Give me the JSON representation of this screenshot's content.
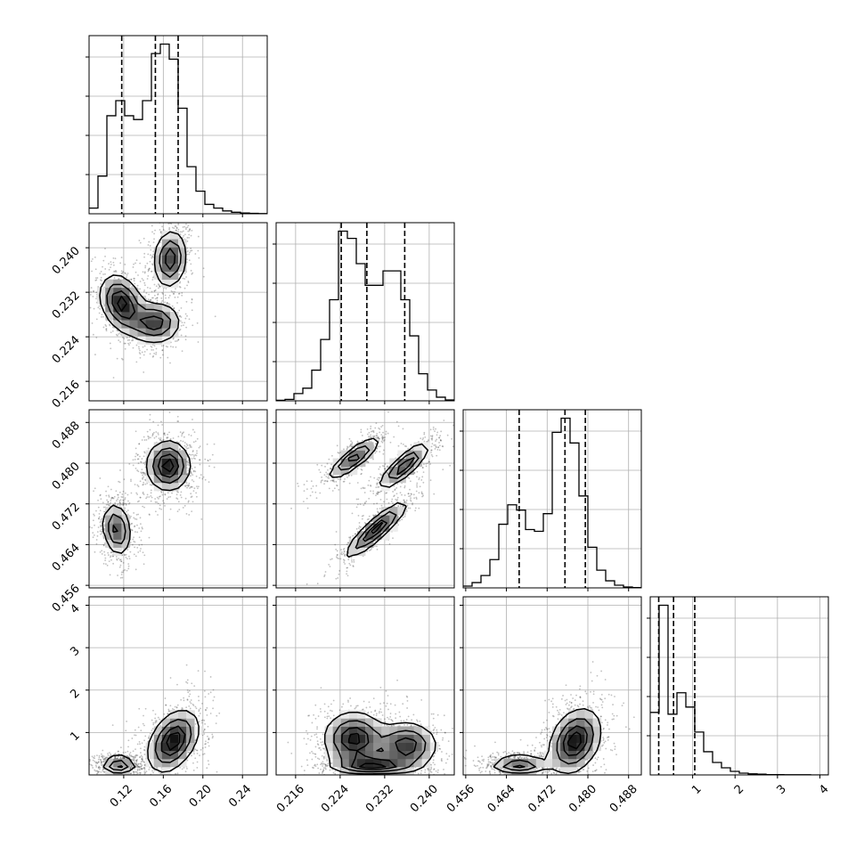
{
  "chart_data": {
    "type": "corner",
    "parameters": [
      {
        "ticks": [
          0.12,
          0.16,
          0.2,
          0.24
        ],
        "tick_labels": [
          "0.12",
          "0.16",
          "0.20",
          "0.24"
        ],
        "lim": [
          0.085,
          0.265
        ],
        "quantiles": [
          0.118,
          0.152,
          0.175
        ]
      },
      {
        "ticks": [
          0.216,
          0.224,
          0.232,
          0.24
        ],
        "tick_labels": [
          "0.216",
          "0.224",
          "0.232",
          "0.240"
        ],
        "lim": [
          0.2125,
          0.2445
        ],
        "quantiles": [
          0.2242,
          0.2288,
          0.2356
        ]
      },
      {
        "ticks": [
          0.456,
          0.464,
          0.472,
          0.48,
          0.488
        ],
        "tick_labels": [
          "0.456",
          "0.464",
          "0.472",
          "0.480",
          "0.488"
        ],
        "lim": [
          0.4555,
          0.4905
        ],
        "quantiles": [
          0.4665,
          0.4755,
          0.4795
        ]
      },
      {
        "ticks": [
          1,
          2,
          3,
          4
        ],
        "tick_labels": [
          "1",
          "2",
          "3",
          "4"
        ],
        "lim": [
          0.0,
          4.2
        ],
        "quantiles": [
          0.2,
          0.55,
          1.05
        ]
      }
    ],
    "histograms": [
      {
        "edges": [
          0.085,
          0.094,
          0.103,
          0.112,
          0.121,
          0.13,
          0.139,
          0.148,
          0.157,
          0.166,
          0.175,
          0.184,
          0.193,
          0.202,
          0.211,
          0.22,
          0.229,
          0.238,
          0.247,
          0.256,
          0.265
        ],
        "counts": [
          0.03,
          0.2,
          0.52,
          0.6,
          0.52,
          0.5,
          0.6,
          0.85,
          0.9,
          0.82,
          0.56,
          0.25,
          0.12,
          0.05,
          0.03,
          0.015,
          0.008,
          0.004,
          0.002,
          0.001
        ]
      },
      {
        "edges": [
          0.2125,
          0.2141,
          0.2157,
          0.2173,
          0.2189,
          0.2205,
          0.2221,
          0.2237,
          0.2253,
          0.2269,
          0.2285,
          0.2301,
          0.2317,
          0.2333,
          0.2349,
          0.2365,
          0.2381,
          0.2397,
          0.2413,
          0.2429,
          0.2445
        ],
        "counts": [
          0.003,
          0.008,
          0.04,
          0.07,
          0.17,
          0.34,
          0.56,
          0.94,
          0.9,
          0.76,
          0.64,
          0.64,
          0.72,
          0.72,
          0.56,
          0.36,
          0.15,
          0.06,
          0.02,
          0.005
        ]
      },
      {
        "edges": [
          0.4555,
          0.45725,
          0.459,
          0.46075,
          0.4625,
          0.46425,
          0.466,
          0.46775,
          0.4695,
          0.47125,
          0.473,
          0.47475,
          0.4765,
          0.47825,
          0.48,
          0.48175,
          0.4835,
          0.48525,
          0.487,
          0.48875,
          0.4905
        ],
        "counts": [
          0.01,
          0.03,
          0.07,
          0.16,
          0.36,
          0.47,
          0.44,
          0.33,
          0.32,
          0.42,
          0.88,
          0.96,
          0.82,
          0.52,
          0.23,
          0.1,
          0.04,
          0.015,
          0.005,
          0.002
        ]
      },
      {
        "edges": [
          0.0,
          0.21,
          0.42,
          0.63,
          0.84,
          1.05,
          1.26,
          1.47,
          1.68,
          1.89,
          2.1,
          2.31,
          2.52,
          2.73,
          2.94,
          3.15,
          3.36,
          3.57,
          3.78,
          3.99,
          4.2
        ],
        "counts": [
          0.35,
          0.95,
          0.34,
          0.46,
          0.38,
          0.24,
          0.13,
          0.07,
          0.04,
          0.02,
          0.01,
          0.006,
          0.004,
          0.002,
          0.002,
          0.001,
          0.001,
          0.001,
          0.0,
          0.0
        ]
      }
    ],
    "pairs": [
      {
        "x": 0,
        "y": 1,
        "blobs": [
          {
            "cx": 0.167,
            "cy": 0.238,
            "sx": 0.009,
            "sy": 0.0028,
            "rho": 0.1,
            "w": 0.9
          },
          {
            "cx": 0.118,
            "cy": 0.23,
            "sx": 0.012,
            "sy": 0.0028,
            "rho": -0.3,
            "w": 1.0
          },
          {
            "cx": 0.152,
            "cy": 0.2265,
            "sx": 0.014,
            "sy": 0.002,
            "rho": 0.0,
            "w": 0.85
          }
        ]
      },
      {
        "x": 0,
        "y": 2,
        "blobs": [
          {
            "cx": 0.165,
            "cy": 0.4795,
            "sx": 0.012,
            "sy": 0.0027,
            "rho": 0.0,
            "w": 1.0
          },
          {
            "cx": 0.113,
            "cy": 0.467,
            "sx": 0.008,
            "sy": 0.0028,
            "rho": -0.2,
            "w": 0.8
          }
        ]
      },
      {
        "x": 1,
        "y": 2,
        "blobs": [
          {
            "cx": 0.2265,
            "cy": 0.481,
            "sx": 0.0025,
            "sy": 0.0022,
            "rho": 0.85,
            "w": 0.9
          },
          {
            "cx": 0.2355,
            "cy": 0.4795,
            "sx": 0.0025,
            "sy": 0.0025,
            "rho": 0.85,
            "w": 0.9
          },
          {
            "cx": 0.2305,
            "cy": 0.467,
            "sx": 0.003,
            "sy": 0.003,
            "rho": 0.9,
            "w": 1.0
          }
        ]
      },
      {
        "x": 0,
        "y": 3,
        "blobs": [
          {
            "cx": 0.17,
            "cy": 0.8,
            "sx": 0.014,
            "sy": 0.4,
            "rho": 0.4,
            "w": 1.0
          },
          {
            "cx": 0.115,
            "cy": 0.25,
            "sx": 0.009,
            "sy": 0.1,
            "rho": 0.0,
            "w": 0.9
          }
        ]
      },
      {
        "x": 1,
        "y": 3,
        "blobs": [
          {
            "cx": 0.2265,
            "cy": 0.85,
            "sx": 0.003,
            "sy": 0.35,
            "rho": 0.0,
            "w": 0.9
          },
          {
            "cx": 0.236,
            "cy": 0.7,
            "sx": 0.003,
            "sy": 0.3,
            "rho": 0.0,
            "w": 0.8
          },
          {
            "cx": 0.23,
            "cy": 0.25,
            "sx": 0.004,
            "sy": 0.1,
            "rho": 0.0,
            "w": 1.0
          }
        ]
      },
      {
        "x": 2,
        "y": 3,
        "blobs": [
          {
            "cx": 0.4775,
            "cy": 0.8,
            "sx": 0.0028,
            "sy": 0.42,
            "rho": 0.3,
            "w": 1.0
          },
          {
            "cx": 0.4665,
            "cy": 0.25,
            "sx": 0.003,
            "sy": 0.1,
            "rho": 0.0,
            "w": 0.9
          }
        ]
      }
    ],
    "contour_levels": [
      0.2,
      0.45,
      0.7,
      0.88
    ],
    "grid": true,
    "legend": "none"
  },
  "colors": {
    "line": "#000000",
    "grid": "#b0b0b0",
    "density_max": "#000000",
    "point": "#222222"
  }
}
